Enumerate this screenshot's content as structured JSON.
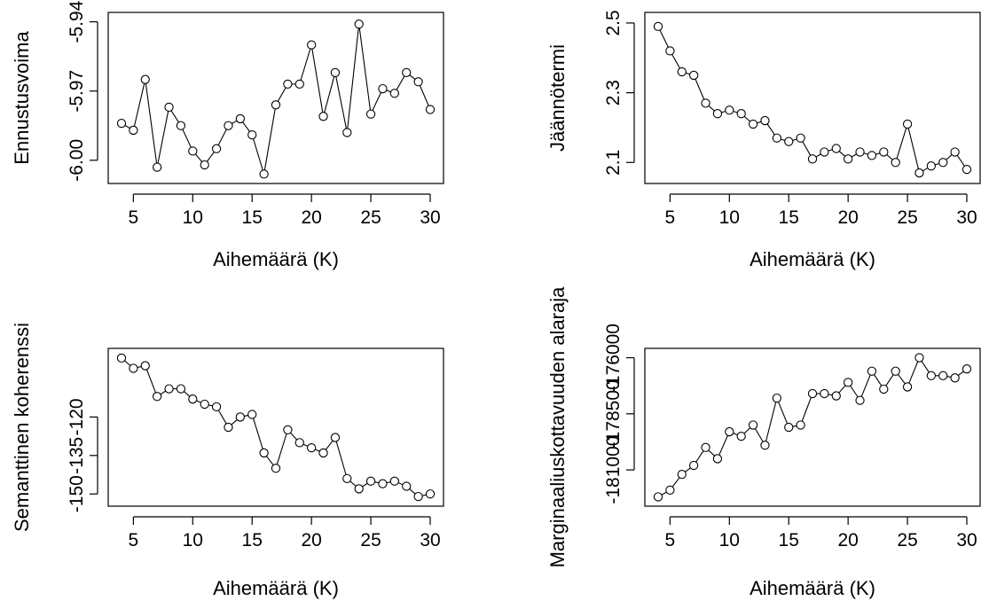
{
  "chart_data": [
    {
      "type": "line",
      "xlabel": "Aihemäärä (K)",
      "ylabel": "Ennustusvoima",
      "x": [
        4,
        5,
        6,
        7,
        8,
        9,
        10,
        11,
        12,
        13,
        14,
        15,
        16,
        17,
        18,
        19,
        20,
        21,
        22,
        23,
        24,
        25,
        26,
        27,
        28,
        29,
        30
      ],
      "values": [
        -5.984,
        -5.987,
        -5.965,
        -6.003,
        -5.977,
        -5.985,
        -5.996,
        -6.002,
        -5.995,
        -5.985,
        -5.982,
        -5.989,
        -6.006,
        -5.976,
        -5.967,
        -5.967,
        -5.95,
        -5.981,
        -5.962,
        -5.988,
        -5.941,
        -5.98,
        -5.969,
        -5.971,
        -5.962,
        -5.966,
        -5.978
      ],
      "xlim": [
        4,
        30
      ],
      "ylim": [
        -6.007,
        -5.939
      ],
      "xticks": [
        "5",
        "10",
        "15",
        "20",
        "25",
        "30"
      ],
      "yticks": [
        "-6.00",
        "-5.97",
        "-5.94"
      ],
      "series_color": "#000000"
    },
    {
      "type": "line",
      "xlabel": "Aihemäärä (K)",
      "ylabel": "Jäännötermi",
      "x": [
        4,
        5,
        6,
        7,
        8,
        9,
        10,
        11,
        12,
        13,
        14,
        15,
        16,
        17,
        18,
        19,
        20,
        21,
        22,
        23,
        24,
        25,
        26,
        27,
        28,
        29,
        30
      ],
      "values": [
        2.49,
        2.42,
        2.36,
        2.35,
        2.27,
        2.24,
        2.25,
        2.24,
        2.21,
        2.22,
        2.17,
        2.16,
        2.17,
        2.11,
        2.13,
        2.14,
        2.11,
        2.13,
        2.12,
        2.13,
        2.1,
        2.21,
        2.07,
        2.09,
        2.1,
        2.13,
        2.08
      ],
      "xlim": [
        4,
        30
      ],
      "ylim": [
        2.06,
        2.51
      ],
      "xticks": [
        "5",
        "10",
        "15",
        "20",
        "25",
        "30"
      ],
      "yticks": [
        "2.1",
        "2.3",
        "2.5"
      ],
      "series_color": "#000000"
    },
    {
      "type": "line",
      "xlabel": "Aihemäärä (K)",
      "ylabel": "Semanttinen koherenssi",
      "x": [
        4,
        5,
        6,
        7,
        8,
        9,
        10,
        11,
        12,
        13,
        14,
        15,
        16,
        17,
        18,
        19,
        20,
        21,
        22,
        23,
        24,
        25,
        26,
        27,
        28,
        29,
        30
      ],
      "values": [
        -97,
        -101,
        -100,
        -112,
        -109,
        -109,
        -113,
        -115,
        -116,
        -124,
        -120,
        -119,
        -134,
        -140,
        -125,
        -130,
        -132,
        -134,
        -128,
        -144,
        -148,
        -145,
        -146,
        -145,
        -147,
        -151,
        -150
      ],
      "xlim": [
        4,
        30
      ],
      "ylim": [
        -152,
        -96
      ],
      "xticks": [
        "5",
        "10",
        "15",
        "20",
        "25",
        "30"
      ],
      "yticks": [
        "-150",
        "-135",
        "-120"
      ],
      "series_color": "#000000"
    },
    {
      "type": "line",
      "xlabel": "Aihemäärä (K)",
      "ylabel": "Marginaaliuskottavuuden alaraja",
      "x": [
        4,
        5,
        6,
        7,
        8,
        9,
        10,
        11,
        12,
        13,
        14,
        15,
        16,
        17,
        18,
        19,
        20,
        21,
        22,
        23,
        24,
        25,
        26,
        27,
        28,
        29,
        30
      ],
      "values": [
        -182200,
        -181900,
        -181200,
        -180800,
        -180000,
        -180500,
        -179300,
        -179500,
        -179000,
        -179900,
        -177800,
        -179100,
        -179000,
        -177600,
        -177600,
        -177700,
        -177100,
        -177900,
        -176600,
        -177400,
        -176600,
        -177300,
        -176000,
        -176800,
        -176800,
        -176900,
        -176500
      ],
      "xlim": [
        4,
        30
      ],
      "ylim": [
        -182300,
        -175900
      ],
      "xticks": [
        "5",
        "10",
        "15",
        "20",
        "25",
        "30"
      ],
      "yticks": [
        "-181000",
        "-178500",
        "-176000"
      ],
      "series_color": "#000000"
    }
  ]
}
